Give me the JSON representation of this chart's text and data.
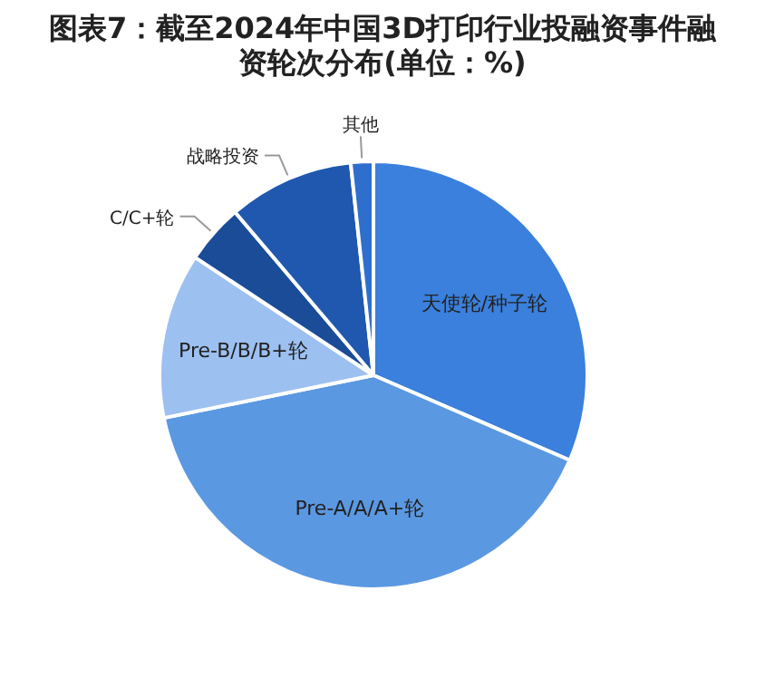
{
  "chart_data": {
    "type": "pie",
    "title": "图表7：截至2024年中国3D打印行业投融资事件融资轮次分布(单位：%)",
    "categories": [
      "天使轮/种子轮",
      "Pre-A/A/A+轮",
      "Pre-B/B/B+轮",
      "C/C+轮",
      "战略投资",
      "其他"
    ],
    "values": [
      31.5,
      40.3,
      12.5,
      4.5,
      9.5,
      1.7
    ],
    "colors": [
      "#3a80dc",
      "#5b98e2",
      "#9cc0f0",
      "#1a4c98",
      "#1f58ae",
      "#2e6fce"
    ]
  }
}
